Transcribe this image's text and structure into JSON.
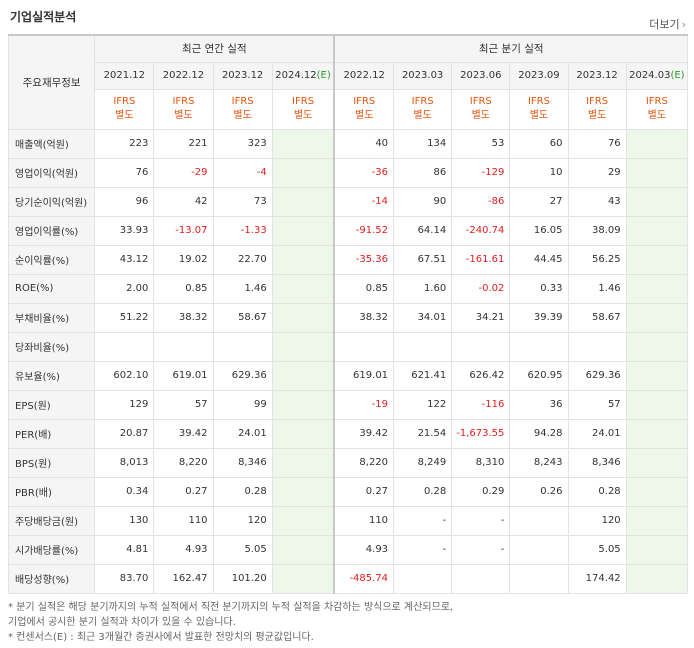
{
  "title": "기업실적분석",
  "more_link": "더보기",
  "header": {
    "row_label": "주요재무정보",
    "annual_group": "최근 연간 실적",
    "quarter_group": "최근 분기 실적",
    "annual_periods": [
      "2021.12",
      "2022.12",
      "2023.12",
      "2024.12"
    ],
    "annual_estimate_suffix": "(E)",
    "quarter_periods": [
      "2022.12",
      "2023.03",
      "2023.06",
      "2023.09",
      "2023.12",
      "2024.03"
    ],
    "quarter_estimate_suffix": "(E)",
    "basis_line1": "IFRS",
    "basis_line2": "별도"
  },
  "rows": [
    {
      "label": "매출액(억원)",
      "annual": [
        "223",
        "221",
        "323",
        ""
      ],
      "quarter": [
        "40",
        "134",
        "53",
        "60",
        "76",
        ""
      ]
    },
    {
      "label": "영업이익(억원)",
      "annual": [
        "76",
        "-29",
        "-4",
        ""
      ],
      "quarter": [
        "-36",
        "86",
        "-129",
        "10",
        "29",
        ""
      ]
    },
    {
      "label": "당기순이익(억원)",
      "annual": [
        "96",
        "42",
        "73",
        ""
      ],
      "quarter": [
        "-14",
        "90",
        "-86",
        "27",
        "43",
        ""
      ]
    },
    {
      "label": "영업이익률(%)",
      "annual": [
        "33.93",
        "-13.07",
        "-1.33",
        ""
      ],
      "quarter": [
        "-91.52",
        "64.14",
        "-240.74",
        "16.05",
        "38.09",
        ""
      ]
    },
    {
      "label": "순이익률(%)",
      "annual": [
        "43.12",
        "19.02",
        "22.70",
        ""
      ],
      "quarter": [
        "-35.36",
        "67.51",
        "-161.61",
        "44.45",
        "56.25",
        ""
      ]
    },
    {
      "label": "ROE(%)",
      "annual": [
        "2.00",
        "0.85",
        "1.46",
        ""
      ],
      "quarter": [
        "0.85",
        "1.60",
        "-0.02",
        "0.33",
        "1.46",
        ""
      ]
    },
    {
      "label": "부채비율(%)",
      "annual": [
        "51.22",
        "38.32",
        "58.67",
        ""
      ],
      "quarter": [
        "38.32",
        "34.01",
        "34.21",
        "39.39",
        "58.67",
        ""
      ]
    },
    {
      "label": "당좌비율(%)",
      "annual": [
        "",
        "",
        "",
        ""
      ],
      "quarter": [
        "",
        "",
        "",
        "",
        "",
        ""
      ]
    },
    {
      "label": "유보율(%)",
      "annual": [
        "602.10",
        "619.01",
        "629.36",
        ""
      ],
      "quarter": [
        "619.01",
        "621.41",
        "626.42",
        "620.95",
        "629.36",
        ""
      ]
    },
    {
      "label": "EPS(원)",
      "annual": [
        "129",
        "57",
        "99",
        ""
      ],
      "quarter": [
        "-19",
        "122",
        "-116",
        "36",
        "57",
        ""
      ]
    },
    {
      "label": "PER(배)",
      "annual": [
        "20.87",
        "39.42",
        "24.01",
        ""
      ],
      "quarter": [
        "39.42",
        "21.54",
        "-1,673.55",
        "94.28",
        "24.01",
        ""
      ]
    },
    {
      "label": "BPS(원)",
      "annual": [
        "8,013",
        "8,220",
        "8,346",
        ""
      ],
      "quarter": [
        "8,220",
        "8,249",
        "8,310",
        "8,243",
        "8,346",
        ""
      ]
    },
    {
      "label": "PBR(배)",
      "annual": [
        "0.34",
        "0.27",
        "0.28",
        ""
      ],
      "quarter": [
        "0.27",
        "0.28",
        "0.29",
        "0.26",
        "0.28",
        ""
      ]
    },
    {
      "label": "주당배당금(원)",
      "annual": [
        "130",
        "110",
        "120",
        ""
      ],
      "quarter": [
        "110",
        "-",
        "-",
        "",
        "120",
        ""
      ]
    },
    {
      "label": "시가배당률(%)",
      "annual": [
        "4.81",
        "4.93",
        "5.05",
        ""
      ],
      "quarter": [
        "4.93",
        "-",
        "-",
        "",
        "5.05",
        ""
      ]
    },
    {
      "label": "배당성향(%)",
      "annual": [
        "83.70",
        "162.47",
        "101.20",
        ""
      ],
      "quarter": [
        "-485.74",
        "",
        "",
        "",
        "174.42",
        ""
      ]
    }
  ],
  "notes": [
    "* 분기 실적은 해당 분기까지의 누적 실적에서 직전 분기까지의 누적 실적을 차감하는 방식으로 계산되므로,",
    "  기업에서 공시한 분기 실적과 차이가 있을 수 있습니다.",
    "* 컨센서스(E) : 최근 3개월간 증권사에서 발표한 전망치의 평균값입니다."
  ],
  "colors": {
    "ifrs": "#e8530e",
    "negative": "#e02020",
    "estimate_bg": "#eef8ea",
    "estimate_mark": "#2a9d2a"
  }
}
